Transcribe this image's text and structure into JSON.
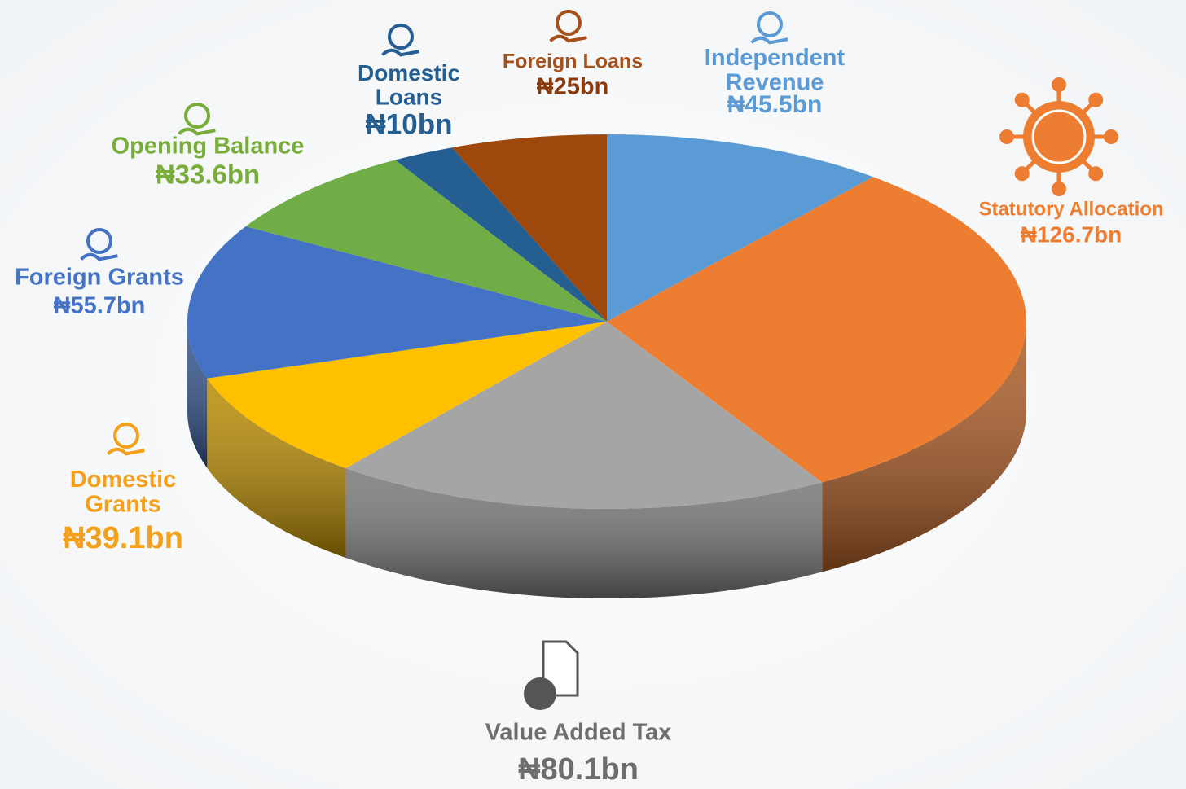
{
  "chart_data": {
    "type": "pie3d",
    "categories": [
      "Independent Revenue",
      "Statutory Allocation",
      "Value Added Tax",
      "Domestic Grants",
      "Foreign Grants",
      "Opening Balance",
      "Domestic Loans",
      "Foreign Loans"
    ],
    "values": [
      45.5,
      126.7,
      80.1,
      39.1,
      55.7,
      33.6,
      10,
      25
    ],
    "value_labels": [
      "₦45.5bn",
      "₦126.7bn",
      "₦80.1bn",
      "₦39.1bn",
      "₦55.7bn",
      "₦33.6bn",
      "₦10bn",
      "₦25bn"
    ],
    "colors": [
      "#5b9bd5",
      "#ed7d31",
      "#a5a5a5",
      "#ffc000",
      "#4472c4",
      "#70ad47",
      "#255e91",
      "#9e480e"
    ]
  }
}
